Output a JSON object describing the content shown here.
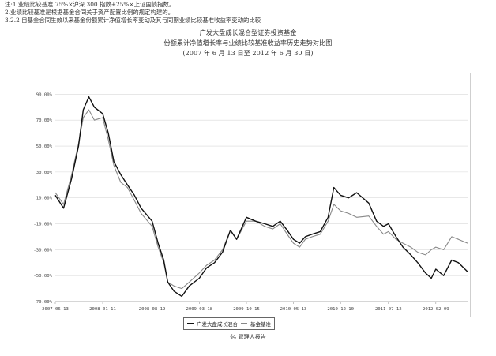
{
  "notes": [
    "注:1.业绩比较基准:75%×沪深 300 指数+25%×上证国债指数。",
    "2.业绩比较基准是根据基金合同关于资产配置比例的规定构建的。",
    "3.2.2 自基金合同生效以来基金份额累计净值增长率变动及其与同期业绩比较基准收益率变动的比较"
  ],
  "captions": [
    "广发大盘成长混合型证券投资基金",
    "份额累计净值增长率与业绩比较基准收益率历史走势对比图",
    "(2007 年 6 月 13 日至 2012 年 6 月 30 日)"
  ],
  "legend": {
    "series_1": "广发大盘成长混合",
    "series_2": "基金基准"
  },
  "footer": "§4 管理人报告",
  "colors": {
    "series_1": "#111111",
    "series_2": "#888888",
    "grid": "#d9d9d9"
  },
  "chart_data": {
    "type": "line",
    "title": "",
    "xlabel": "",
    "ylabel": "",
    "ylim": [
      -70,
      100
    ],
    "yticks": [
      "90.00%",
      "70.00%",
      "50.00%",
      "30.00%",
      "10.00%",
      "-10.00%",
      "-30.00%",
      "-50.00%",
      "-70.00%"
    ],
    "ytick_values": [
      90,
      70,
      50,
      30,
      10,
      -10,
      -30,
      -50,
      -70
    ],
    "xticks": [
      "2007 06 13",
      "2008 01 11",
      "2008 08 19",
      "2009 03 18",
      "2009 10 15",
      "2010 05 13",
      "2010 12 10",
      "2011 07 12",
      "2012 02 09"
    ],
    "xtick_dates": [
      "2007-06-13",
      "2008-01-11",
      "2008-08-19",
      "2009-03-18",
      "2009-10-15",
      "2010-05-13",
      "2010-12-10",
      "2011-07-12",
      "2012-02-09"
    ],
    "x": [
      "2007-06-13",
      "2007-07-20",
      "2007-08-25",
      "2007-09-25",
      "2007-10-16",
      "2007-11-10",
      "2007-12-05",
      "2008-01-11",
      "2008-02-05",
      "2008-03-01",
      "2008-04-01",
      "2008-05-01",
      "2008-06-01",
      "2008-07-01",
      "2008-08-19",
      "2008-09-15",
      "2008-10-10",
      "2008-10-28",
      "2008-11-25",
      "2008-12-30",
      "2009-02-01",
      "2009-03-18",
      "2009-04-20",
      "2009-05-25",
      "2009-06-30",
      "2009-08-04",
      "2009-09-01",
      "2009-10-15",
      "2009-11-25",
      "2010-01-05",
      "2010-02-10",
      "2010-03-15",
      "2010-04-15",
      "2010-05-13",
      "2010-06-10",
      "2010-07-05",
      "2010-08-05",
      "2010-09-10",
      "2010-10-15",
      "2010-11-10",
      "2010-12-10",
      "2011-01-15",
      "2011-02-20",
      "2011-04-15",
      "2011-05-20",
      "2011-06-20",
      "2011-07-12",
      "2011-08-15",
      "2011-09-15",
      "2011-10-20",
      "2011-11-20",
      "2011-12-25",
      "2012-01-20",
      "2012-02-09",
      "2012-03-15",
      "2012-04-20",
      "2012-05-20",
      "2012-06-30"
    ],
    "series": [
      {
        "name": "广发大盘成长混合",
        "values": [
          12,
          2,
          25,
          50,
          78,
          88,
          80,
          75,
          60,
          38,
          28,
          20,
          12,
          2,
          -8,
          -25,
          -38,
          -55,
          -62,
          -66,
          -58,
          -52,
          -44,
          -40,
          -32,
          -15,
          -22,
          -5,
          -8,
          -10,
          -12,
          -8,
          -15,
          -22,
          -25,
          -20,
          -18,
          -16,
          -5,
          18,
          12,
          10,
          14,
          6,
          -8,
          -12,
          -10,
          -20,
          -28,
          -34,
          -40,
          -48,
          -52,
          -45,
          -50,
          -38,
          -40,
          -47
        ]
      },
      {
        "name": "基金基准",
        "values": [
          14,
          5,
          28,
          52,
          72,
          78,
          70,
          72,
          55,
          35,
          22,
          18,
          8,
          -2,
          -12,
          -28,
          -40,
          -55,
          -58,
          -60,
          -55,
          -48,
          -42,
          -38,
          -30,
          -15,
          -22,
          -8,
          -8,
          -12,
          -14,
          -10,
          -18,
          -25,
          -28,
          -22,
          -20,
          -18,
          -8,
          5,
          0,
          -2,
          -5,
          -4,
          -12,
          -18,
          -16,
          -22,
          -25,
          -28,
          -32,
          -34,
          -30,
          -28,
          -30,
          -20,
          -22,
          -25
        ]
      }
    ]
  }
}
